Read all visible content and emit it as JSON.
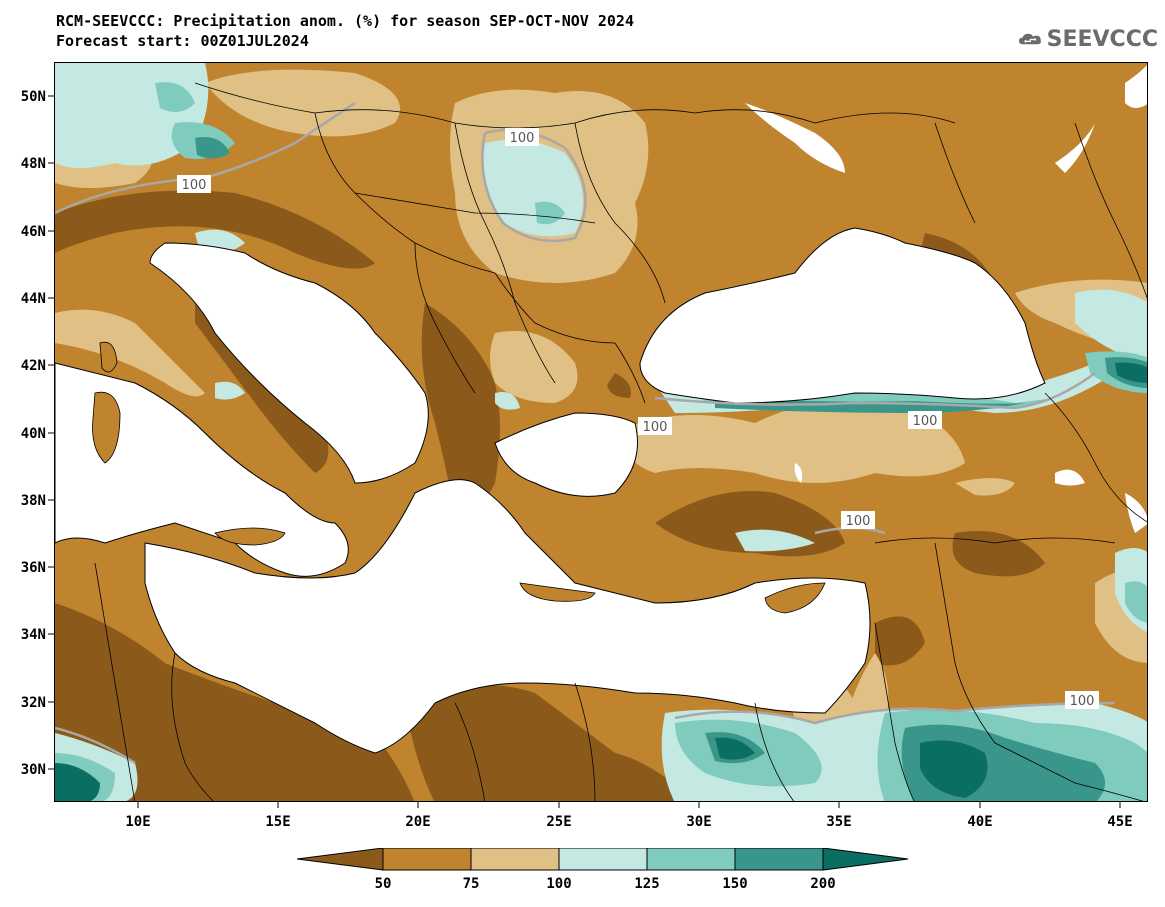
{
  "header": {
    "title": "RCM-SEEVCCC: Precipitation anom. (%) for season SEP-OCT-NOV 2024",
    "subtitle": "Forecast start: 00Z01JUL2024"
  },
  "logo": {
    "text": "SEEVCCC",
    "icon": "cloud-icon"
  },
  "map": {
    "type": "filled-contour-map",
    "variable": "Precipitation anomaly (%)",
    "lon_range": [
      7,
      45.5
    ],
    "lat_range": [
      29,
      51
    ],
    "x_ticks": [
      "10E",
      "15E",
      "20E",
      "25E",
      "30E",
      "35E",
      "40E",
      "45E"
    ],
    "y_ticks": [
      "30N",
      "32N",
      "34N",
      "36N",
      "38N",
      "40N",
      "42N",
      "44N",
      "46N",
      "48N",
      "50N"
    ],
    "contour_labels": [
      "100",
      "100",
      "100",
      "100",
      "100",
      "100"
    ]
  },
  "legend": {
    "bins": [
      {
        "color": "#8b5a1a"
      },
      {
        "color": "#c0842f"
      },
      {
        "color": "#e0c084"
      },
      {
        "color": "#c4e9e3"
      },
      {
        "color": "#7fcbbe"
      },
      {
        "color": "#3a968a"
      },
      {
        "color": "#0b6e62"
      }
    ],
    "labels": [
      "50",
      "75",
      "100",
      "125",
      "150",
      "200"
    ]
  }
}
